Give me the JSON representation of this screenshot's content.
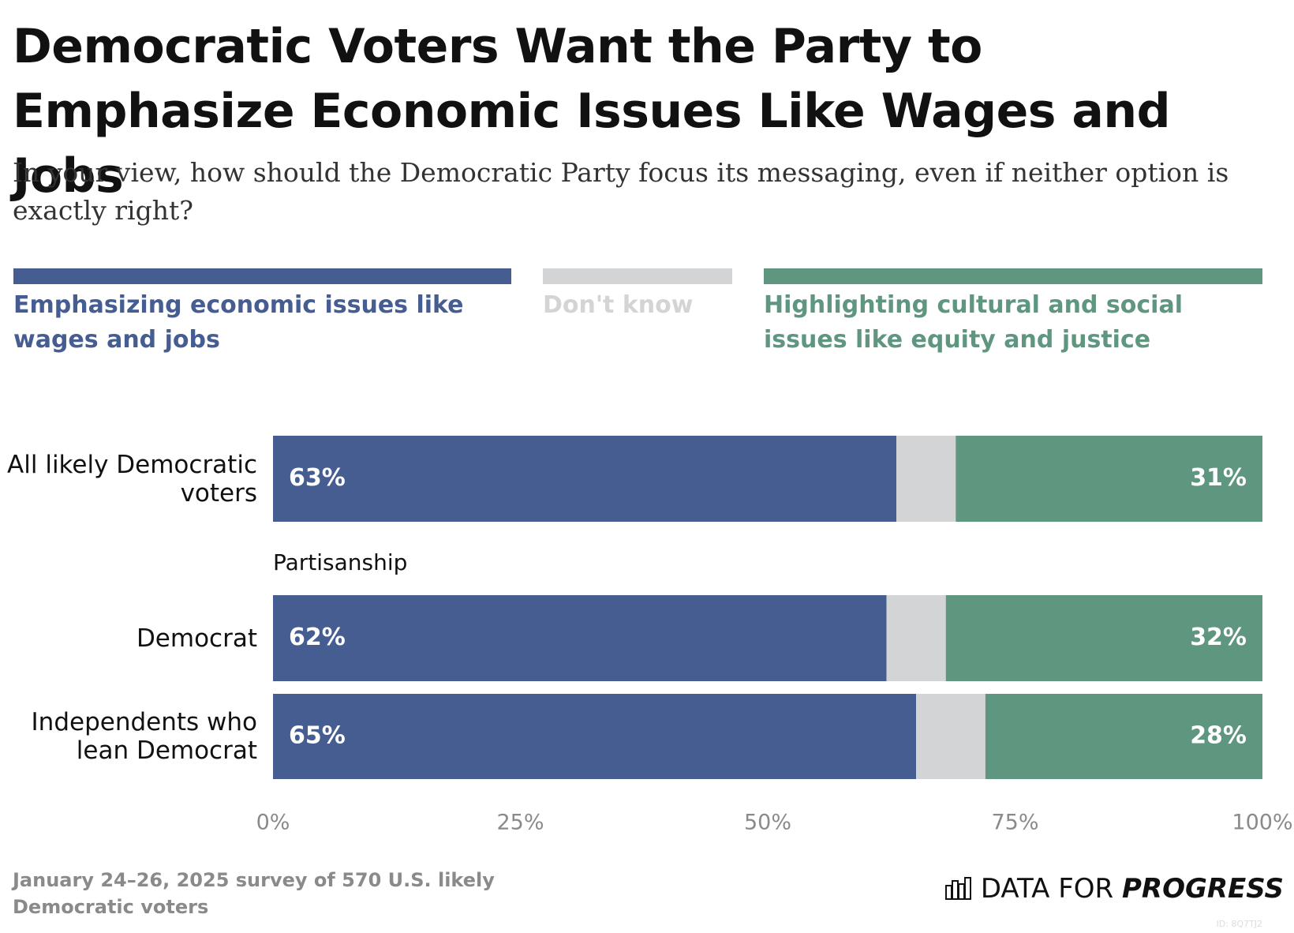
{
  "chart_data": {
    "type": "bar",
    "orientation": "horizontal",
    "stacked": true,
    "title": "Democratic Voters Want the Party to Emphasize Economic Issues Like Wages and Jobs",
    "subtitle": "In your view, how should the Democratic Party focus its messaging, even if neither option is exactly right?",
    "categories": [
      "All likely Democratic voters",
      "Democrat",
      "Independents who lean Democrat"
    ],
    "group_label": "Partisanship",
    "series": [
      {
        "name": "Emphasizing economic issues like wages and jobs",
        "color": "#465d92",
        "values": [
          63,
          62,
          65
        ],
        "value_labels": [
          "63%",
          "62%",
          "65%"
        ]
      },
      {
        "name": "Don't know",
        "color": "#d3d4d6",
        "values": [
          6,
          6,
          7
        ]
      },
      {
        "name": "Highlighting cultural and social issues like equity and justice",
        "color": "#5f9680",
        "values": [
          31,
          32,
          28
        ],
        "value_labels": [
          "31%",
          "32%",
          "28%"
        ]
      }
    ],
    "xlim": [
      0,
      100
    ],
    "xticks": [
      {
        "value": 0,
        "label": "0%"
      },
      {
        "value": 25,
        "label": "25%"
      },
      {
        "value": 50,
        "label": "50%"
      },
      {
        "value": 75,
        "label": "75%"
      },
      {
        "value": 100,
        "label": "100%"
      }
    ],
    "grid": false,
    "legend_position": "top",
    "footnote": "January 24–26, 2025 survey of 570 U.S. likely Democratic voters",
    "source_logo": {
      "normal": "DATA FOR",
      "bold": "PROGRESS"
    },
    "chart_id": "ID: 8Q7TJ2"
  }
}
